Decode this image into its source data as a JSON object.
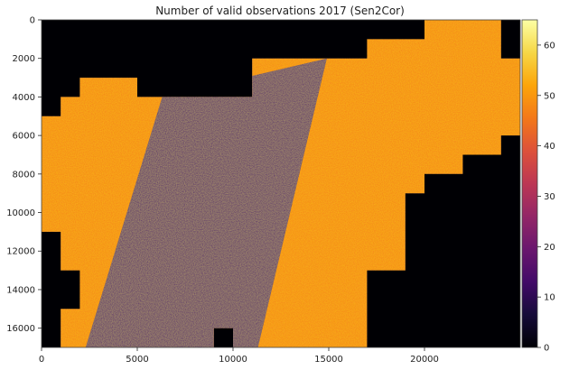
{
  "chart_data": {
    "type": "heatmap",
    "title": "Number of valid observations 2017 (Sen2Cor)",
    "xlabel": "",
    "ylabel": "",
    "xlim": [
      0,
      25000
    ],
    "ylim": [
      17000,
      0
    ],
    "x_ticks": [
      0,
      5000,
      10000,
      15000,
      20000
    ],
    "y_ticks": [
      0,
      2000,
      4000,
      6000,
      8000,
      10000,
      12000,
      14000,
      16000
    ],
    "colorbar": {
      "colormap": "inferno",
      "range": [
        0,
        65
      ],
      "ticks": [
        0,
        10,
        20,
        30,
        40,
        50,
        60
      ]
    },
    "no_data_color": "#000004",
    "data_regions": {
      "outline_polygon_data_units": [
        [
          0,
          5000
        ],
        [
          1000,
          5000
        ],
        [
          1000,
          4000
        ],
        [
          2000,
          4000
        ],
        [
          2000,
          3000
        ],
        [
          5000,
          3000
        ],
        [
          5000,
          4000
        ],
        [
          11000,
          4000
        ],
        [
          11000,
          2000
        ],
        [
          17000,
          2000
        ],
        [
          17000,
          1000
        ],
        [
          20000,
          1000
        ],
        [
          20000,
          0
        ],
        [
          24000,
          0
        ],
        [
          24000,
          2000
        ],
        [
          25000,
          2000
        ],
        [
          25000,
          6000
        ],
        [
          24000,
          6000
        ],
        [
          24000,
          7000
        ],
        [
          22000,
          7000
        ],
        [
          22000,
          8000
        ],
        [
          20000,
          8000
        ],
        [
          20000,
          9000
        ],
        [
          19000,
          9000
        ],
        [
          19000,
          13000
        ],
        [
          17000,
          13000
        ],
        [
          17000,
          17000
        ],
        [
          10000,
          17000
        ],
        [
          10000,
          16000
        ],
        [
          9000,
          16000
        ],
        [
          9000,
          17000
        ],
        [
          1000,
          17000
        ],
        [
          1000,
          15000
        ],
        [
          2000,
          15000
        ],
        [
          2000,
          13000
        ],
        [
          1000,
          13000
        ],
        [
          1000,
          11000
        ],
        [
          0,
          11000
        ]
      ],
      "high_count_value": 47,
      "low_count_stripe_value": 15,
      "low_count_stripe_polygon_data_units": [
        [
          6300,
          4000
        ],
        [
          14900,
          2000
        ],
        [
          11300,
          17000
        ],
        [
          2300,
          17000
        ]
      ]
    }
  }
}
